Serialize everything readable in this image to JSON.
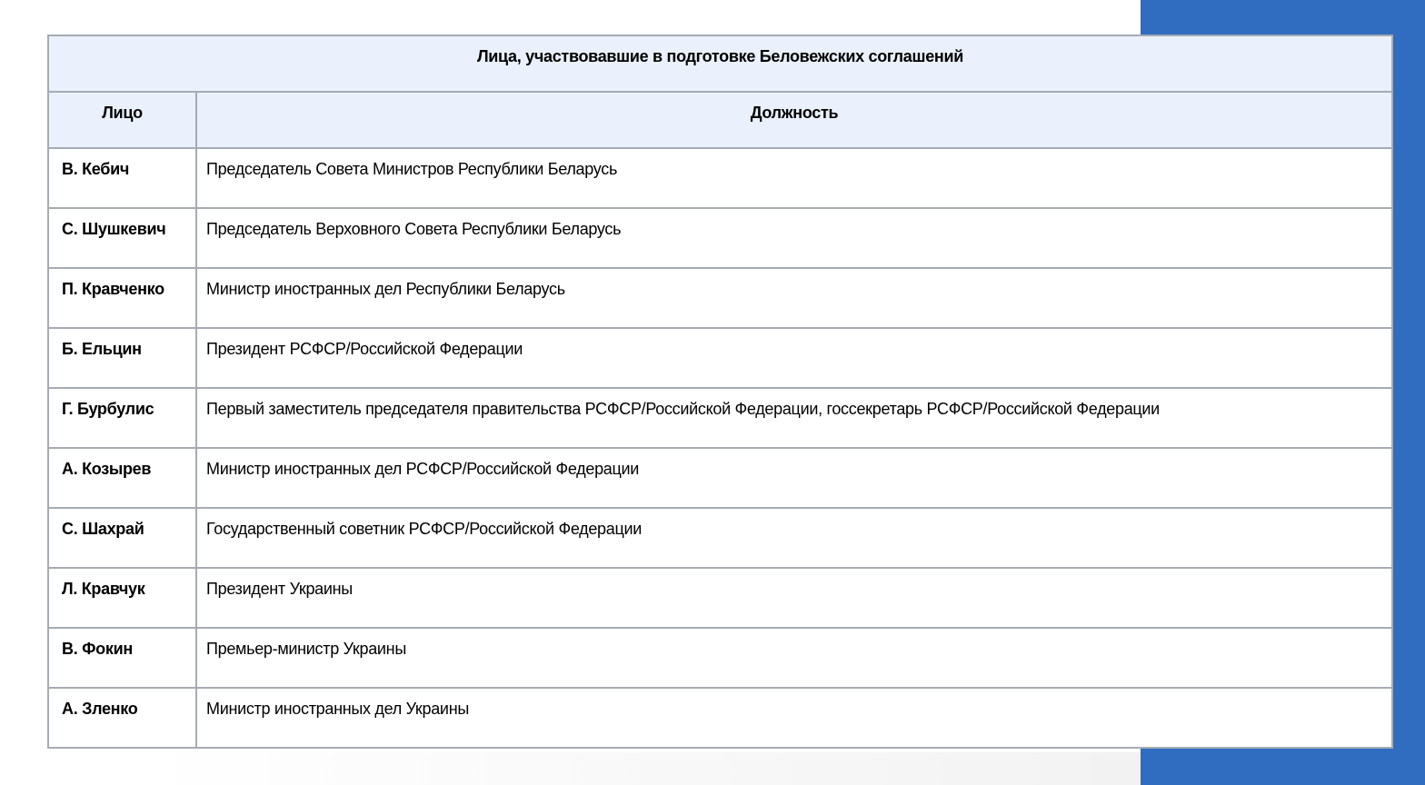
{
  "colors": {
    "side_panel": "#306cc0",
    "header_bg": "#eaf1fc",
    "border": "#a6abb3"
  },
  "table": {
    "title": "Лица, участвовавшие в подготовке Беловежских соглашений",
    "columns": [
      "Лицо",
      "Должность"
    ],
    "rows": [
      {
        "person": "В. Кебич",
        "position": "Председатель Совета Министров Республики Беларусь"
      },
      {
        "person": "С. Шушкевич",
        "position": "Председатель Верховного Совета Республики Беларусь"
      },
      {
        "person": "П. Кравченко",
        "position": "Министр иностранных дел Республики Беларусь"
      },
      {
        "person": "Б. Ельцин",
        "position": "Президент РСФСР/Российской Федерации"
      },
      {
        "person": "Г. Бурбулис",
        "position": "Первый заместитель председателя правительства РСФСР/Российской Федерации, госсекретарь РСФСР/Российской Федерации"
      },
      {
        "person": "А. Козырев",
        "position": "Министр иностранных дел РСФСР/Российской Федерации"
      },
      {
        "person": "С. Шахрай",
        "position": "Государственный советник РСФСР/Российской Федерации"
      },
      {
        "person": "Л. Кравчук",
        "position": "Президент Украины"
      },
      {
        "person": "В. Фокин",
        "position": "Премьер-министр Украины"
      },
      {
        "person": "А. Зленко",
        "position": "Министр иностранных дел Украины"
      }
    ]
  }
}
